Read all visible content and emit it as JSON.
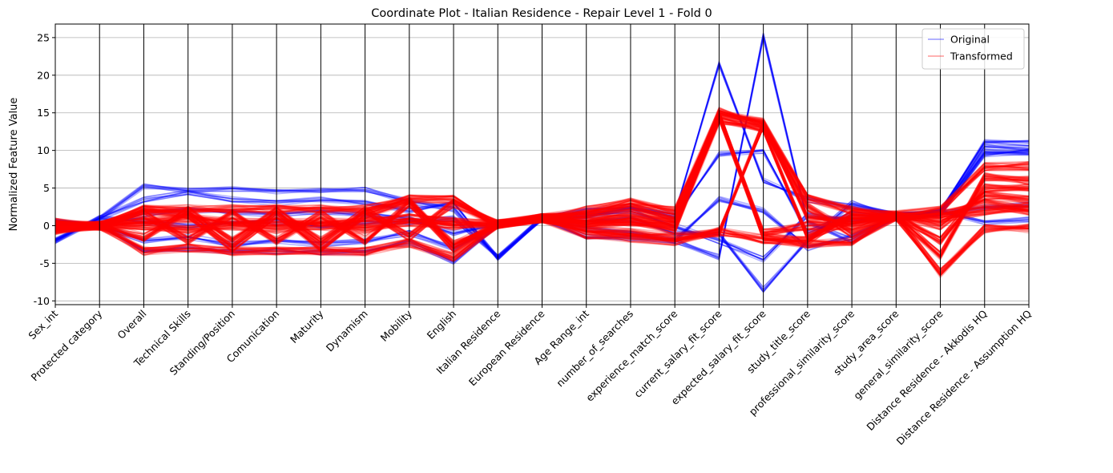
{
  "chart_data": {
    "type": "parallel_coordinates",
    "title": "Coordinate Plot - Italian Residence - Repair Level 1 - Fold 0",
    "xlabel": "",
    "ylabel": "Normalized Feature Value",
    "ylim": [
      -10.5,
      26.8
    ],
    "yticks": [
      -10,
      -5,
      0,
      5,
      10,
      15,
      20,
      25
    ],
    "grid": true,
    "legend_position": "top-right",
    "categories": [
      "Sex_int",
      "Protected category",
      "Overall",
      "Technical Skills",
      "Standing/Position",
      "Comunication",
      "Maturity",
      "Dynamism",
      "Mobility",
      "English",
      "Italian Residence",
      "European Residence",
      "Age Range_int",
      "number_of_searches",
      "experience_match_score",
      "current_salary_fit_score",
      "expected_salary_fit_score",
      "study_title_score",
      "professional_similarity_score",
      "study_area_score",
      "general_similarity_score",
      "Distance Residence - Akkodis HQ",
      "Distance Residence - Assumption HQ"
    ],
    "series": [
      {
        "name": "Original",
        "color": "#0000ff",
        "lines": [
          [
            -2.0,
            1.0,
            5.2,
            4.6,
            4.8,
            4.6,
            4.7,
            4.8,
            3.2,
            2.2,
            -4.2,
            1.0,
            1.0,
            2.5,
            1.5,
            21.5,
            6.0,
            3.5,
            2.5,
            1.5,
            2.0,
            11.2,
            11.0
          ],
          [
            0.5,
            0.0,
            -3.5,
            -3.0,
            -3.4,
            -3.4,
            -3.5,
            -3.5,
            -2.2,
            -4.8,
            0.2,
            1.0,
            -1.4,
            -1.7,
            -2.0,
            -4.2,
            25.2,
            0.5,
            -2.0,
            1.2,
            1.8,
            9.8,
            9.6
          ],
          [
            0.5,
            0.0,
            1.5,
            2.0,
            1.8,
            1.5,
            1.8,
            1.5,
            1.0,
            -1.0,
            0.2,
            1.0,
            2.0,
            2.5,
            1.0,
            9.5,
            10.0,
            -1.0,
            1.5,
            1.0,
            1.5,
            9.5,
            9.8
          ],
          [
            -2.0,
            1.0,
            3.5,
            4.5,
            3.5,
            3.0,
            3.5,
            3.0,
            2.0,
            3.0,
            -4.2,
            1.0,
            0.5,
            1.0,
            -1.0,
            -1.0,
            -8.5,
            -2.0,
            3.0,
            1.3,
            1.9,
            10.5,
            10.3
          ],
          [
            0.5,
            0.0,
            -2.0,
            -1.5,
            -2.5,
            -2.0,
            -2.5,
            -2.0,
            -1.0,
            -3.0,
            0.2,
            1.0,
            -0.5,
            -1.0,
            -2.0,
            3.5,
            2.0,
            -3.0,
            -1.5,
            1.2,
            1.8,
            0.5,
            0.8
          ],
          [
            -2.0,
            1.0,
            0.5,
            0.0,
            0.5,
            0.5,
            0.0,
            0.5,
            0.5,
            1.0,
            -4.2,
            1.0,
            1.5,
            2.0,
            0.0,
            -2.0,
            -4.5,
            1.5,
            0.5,
            1.1,
            1.7,
            2.5,
            2.8
          ]
        ]
      },
      {
        "name": "Transformed",
        "color": "#ff0000",
        "lines": [
          [
            -0.6,
            0.0,
            2.2,
            2.2,
            2.2,
            2.2,
            2.2,
            2.2,
            3.5,
            3.5,
            0.2,
            1.0,
            2.0,
            3.1,
            2.0,
            15.2,
            13.7,
            3.6,
            2.0,
            1.4,
            2.0,
            7.9,
            7.9
          ],
          [
            0.4,
            0.0,
            -3.4,
            -3.0,
            -3.4,
            -3.4,
            -3.4,
            -3.4,
            -2.3,
            -4.2,
            0.2,
            1.0,
            -1.2,
            -1.6,
            -2.1,
            -0.8,
            -1.8,
            -2.4,
            -2.1,
            1.2,
            -6.3,
            -0.4,
            -0.4
          ],
          [
            0.0,
            0.0,
            0.5,
            1.0,
            0.5,
            0.5,
            0.5,
            0.5,
            1.0,
            0.5,
            0.2,
            1.0,
            0.5,
            0.5,
            0.0,
            14.8,
            13.5,
            1.0,
            0.5,
            1.3,
            0.0,
            4.0,
            3.5
          ],
          [
            -0.3,
            0.0,
            1.5,
            -2.0,
            1.5,
            -2.0,
            1.5,
            -2.0,
            3.0,
            -3.0,
            0.2,
            1.0,
            1.5,
            2.5,
            1.0,
            14.5,
            -1.5,
            -2.0,
            1.5,
            1.3,
            -4.0,
            6.5,
            6.0
          ],
          [
            0.2,
            0.0,
            -1.5,
            2.0,
            -2.0,
            2.0,
            -2.0,
            2.0,
            -1.5,
            3.0,
            0.2,
            1.0,
            -0.5,
            -1.0,
            -1.5,
            -1.0,
            13.5,
            2.5,
            -1.0,
            1.2,
            1.0,
            2.0,
            2.5
          ],
          [
            0.0,
            0.0,
            0.0,
            -0.5,
            0.0,
            -0.5,
            0.0,
            -0.5,
            0.5,
            0.0,
            0.2,
            1.0,
            1.0,
            1.5,
            0.5,
            15.0,
            -1.0,
            0.0,
            0.0,
            1.3,
            -2.0,
            5.0,
            5.0
          ],
          [
            -0.5,
            0.0,
            2.0,
            1.5,
            -3.0,
            1.5,
            -3.0,
            1.5,
            3.3,
            -2.5,
            0.2,
            1.0,
            0.0,
            0.5,
            -0.5,
            14.0,
            13.0,
            -1.5,
            0.8,
            1.2,
            1.5,
            3.0,
            2.0
          ]
        ]
      }
    ]
  }
}
